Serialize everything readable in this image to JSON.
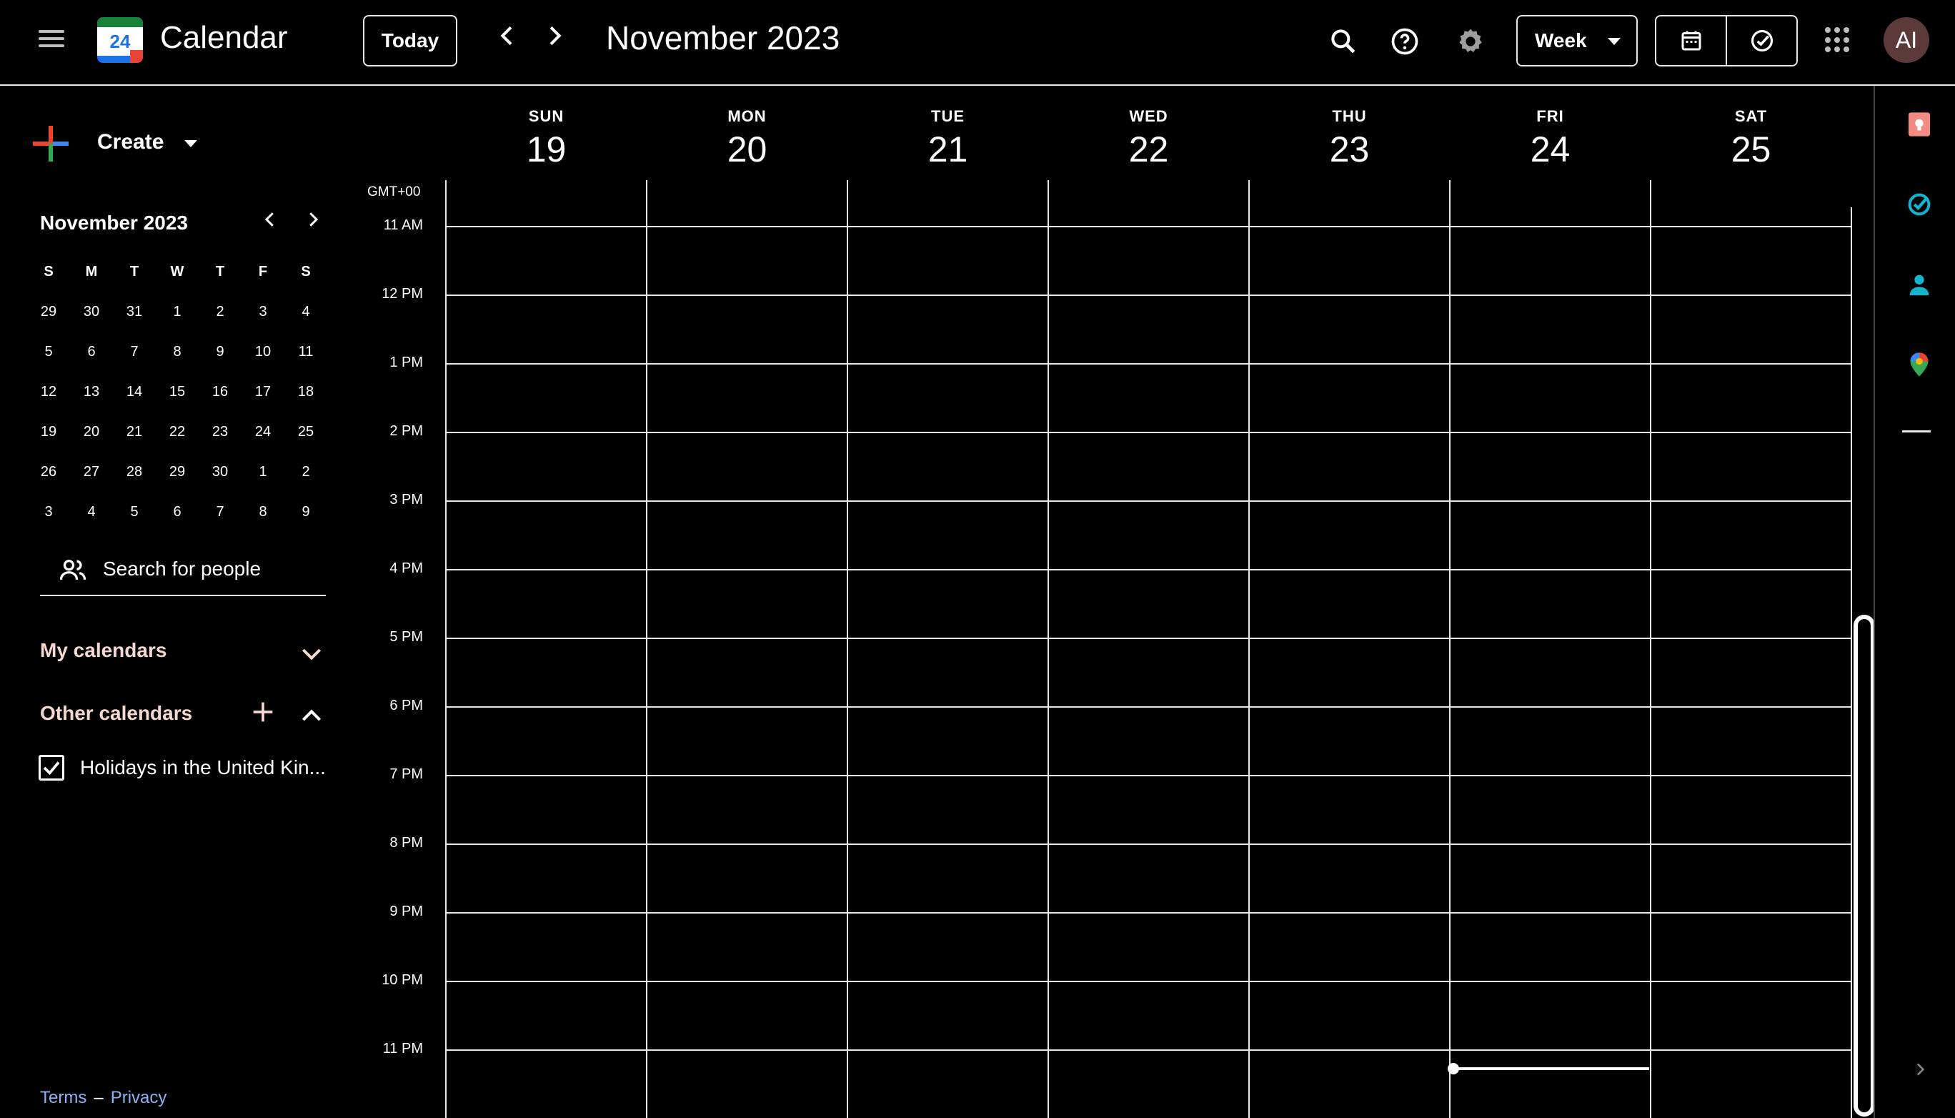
{
  "header": {
    "app_title": "Calendar",
    "logo_day": "24",
    "today_label": "Today",
    "period_title": "November 2023",
    "view_label": "Week",
    "avatar_initials": "AI"
  },
  "sidebar": {
    "create_label": "Create",
    "mini_calendar": {
      "title": "November 2023",
      "weekdays": [
        "S",
        "M",
        "T",
        "W",
        "T",
        "F",
        "S"
      ],
      "weeks": [
        [
          "29",
          "30",
          "31",
          "1",
          "2",
          "3",
          "4"
        ],
        [
          "5",
          "6",
          "7",
          "8",
          "9",
          "10",
          "11"
        ],
        [
          "12",
          "13",
          "14",
          "15",
          "16",
          "17",
          "18"
        ],
        [
          "19",
          "20",
          "21",
          "22",
          "23",
          "24",
          "25"
        ],
        [
          "26",
          "27",
          "28",
          "29",
          "30",
          "1",
          "2"
        ],
        [
          "3",
          "4",
          "5",
          "6",
          "7",
          "8",
          "9"
        ]
      ]
    },
    "search_people_placeholder": "Search for people",
    "my_calendars_label": "My calendars",
    "other_calendars_label": "Other calendars",
    "other_calendars": [
      {
        "name": "Holidays in the United Kin...",
        "checked": true
      }
    ],
    "footer": {
      "terms": "Terms",
      "separator": "–",
      "privacy": "Privacy"
    }
  },
  "week": {
    "timezone": "GMT+00",
    "days": [
      {
        "dow": "SUN",
        "date": "19"
      },
      {
        "dow": "MON",
        "date": "20"
      },
      {
        "dow": "TUE",
        "date": "21"
      },
      {
        "dow": "WED",
        "date": "22"
      },
      {
        "dow": "THU",
        "date": "23"
      },
      {
        "dow": "FRI",
        "date": "24"
      },
      {
        "dow": "SAT",
        "date": "25"
      }
    ],
    "hours": [
      "11 AM",
      "12 PM",
      "1 PM",
      "2 PM",
      "3 PM",
      "4 PM",
      "5 PM",
      "6 PM",
      "7 PM",
      "8 PM",
      "9 PM",
      "10 PM",
      "11 PM"
    ]
  },
  "icons": {
    "main_menu": "hamburger-menu-icon",
    "search": "search-icon",
    "help": "help-icon",
    "settings": "gear-icon",
    "calendar_toggle": "calendar-icon",
    "tasks_toggle": "check-circle-icon",
    "apps": "apps-grid-icon",
    "side_panel": [
      "keep-icon",
      "tasks-icon",
      "contacts-icon",
      "maps-icon"
    ]
  },
  "colors": {
    "background": "#000000",
    "grid_line": "#e8e8e8",
    "section_label": "#f5d8d0",
    "link": "#8ab4f8",
    "avatar": "#5d3a3a",
    "keep": "#f28b82",
    "tasks": "#12b5cb"
  }
}
